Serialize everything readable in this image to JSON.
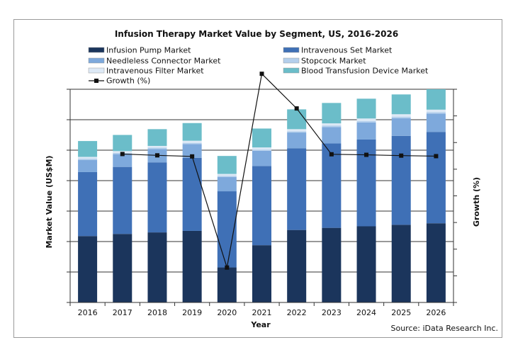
{
  "chart_data": {
    "type": "bar",
    "stacked": true,
    "title": "Infusion Therapy Market Value by Segment, US, 2016-2026",
    "xlabel": "Year",
    "ylabel": "Market Value (US$M)",
    "y2label": "Growth (%)",
    "source": "Source: iData Research Inc.",
    "categories": [
      "2016",
      "2017",
      "2018",
      "2019",
      "2020",
      "2021",
      "2022",
      "2023",
      "2024",
      "2025",
      "2026"
    ],
    "ylim": [
      0,
      7
    ],
    "y2lim": [
      0,
      8
    ],
    "grid": true,
    "legend_position": "top",
    "series": [
      {
        "name": "Infusion Pump Market",
        "color": "#1b355c",
        "values": [
          2.18,
          2.25,
          2.3,
          2.35,
          1.15,
          1.88,
          2.38,
          2.45,
          2.5,
          2.55,
          2.6
        ]
      },
      {
        "name": "Intravenous Set Market",
        "color": "#3f70b6",
        "values": [
          2.1,
          2.2,
          2.3,
          2.4,
          2.5,
          2.6,
          2.68,
          2.77,
          2.85,
          2.92,
          3.0
        ]
      },
      {
        "name": "Needleless Connector Market",
        "color": "#7ea9dc",
        "values": [
          0.4,
          0.42,
          0.44,
          0.45,
          0.47,
          0.5,
          0.52,
          0.54,
          0.56,
          0.58,
          0.6
        ]
      },
      {
        "name": "Stopcock Market",
        "color": "#b4cfec",
        "values": [
          0.04,
          0.04,
          0.04,
          0.04,
          0.04,
          0.04,
          0.04,
          0.05,
          0.05,
          0.05,
          0.05
        ]
      },
      {
        "name": "Intravenous Filter Market",
        "color": "#dde9f6",
        "values": [
          0.06,
          0.06,
          0.06,
          0.07,
          0.06,
          0.07,
          0.07,
          0.07,
          0.08,
          0.08,
          0.08
        ]
      },
      {
        "name": "Blood Transfusion Device Market",
        "color": "#6bbdc9",
        "values": [
          0.52,
          0.53,
          0.55,
          0.58,
          0.59,
          0.62,
          0.65,
          0.67,
          0.65,
          0.65,
          0.67
        ]
      }
    ],
    "line_series": {
      "name": "Growth (%)",
      "axis": "right",
      "color": "#111111",
      "values": [
        null,
        5.57,
        5.52,
        5.48,
        1.31,
        8.58,
        7.28,
        5.56,
        5.54,
        5.51,
        5.49
      ]
    }
  }
}
